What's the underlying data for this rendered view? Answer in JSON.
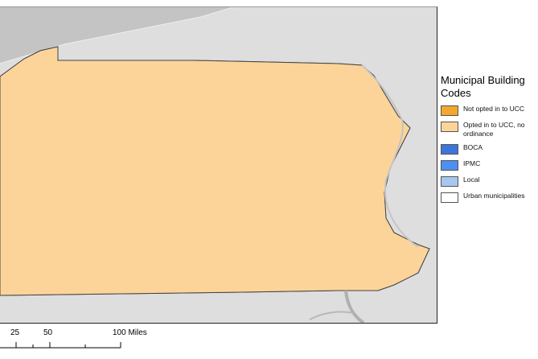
{
  "legend": {
    "title": "Municipal Building Codes",
    "items": [
      {
        "label": "Not opted in to UCC",
        "color": "#f2a82e"
      },
      {
        "label": "Opted in to UCC, no ordinance",
        "color": "#fcd49a"
      },
      {
        "label": "BOCA",
        "color": "#3d76d9"
      },
      {
        "label": "IPMC",
        "color": "#4e8ff0"
      },
      {
        "label": "Local",
        "color": "#a7c7ef"
      },
      {
        "label": "Urban municipalities",
        "color": "#ffffff"
      }
    ]
  },
  "scale_bar": {
    "labels": [
      "25",
      "50",
      "100 Miles"
    ]
  },
  "map": {
    "background_color": "#dedede",
    "water_color": "#c4c4c4",
    "boundary_color": "#555555"
  }
}
